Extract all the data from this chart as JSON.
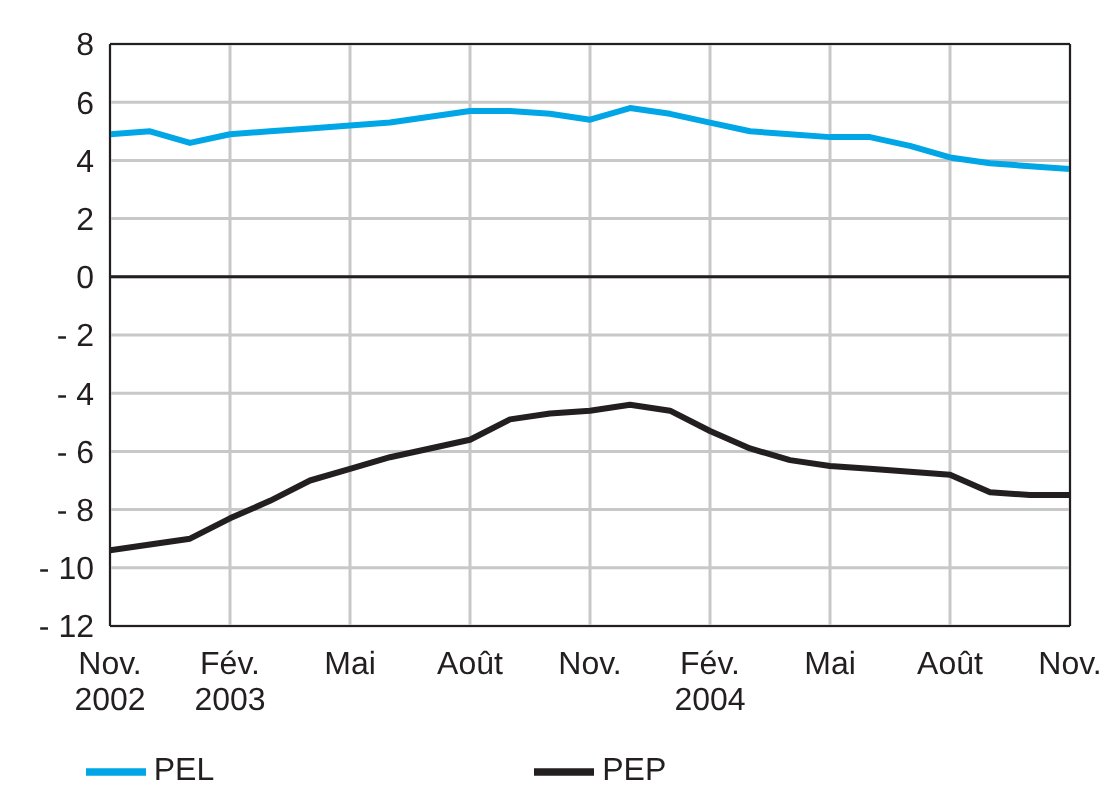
{
  "chart_data": {
    "type": "line",
    "x": [
      "2002-11",
      "2002-12",
      "2003-01",
      "2003-02",
      "2003-03",
      "2003-04",
      "2003-05",
      "2003-06",
      "2003-07",
      "2003-08",
      "2003-09",
      "2003-10",
      "2003-11",
      "2003-12",
      "2004-01",
      "2004-02",
      "2004-03",
      "2004-04",
      "2004-05",
      "2004-06",
      "2004-07",
      "2004-08",
      "2004-09",
      "2004-10",
      "2004-11"
    ],
    "series": [
      {
        "name": "PEP",
        "color": "#231f20",
        "values": [
          -9.4,
          -9.2,
          -9.0,
          -8.3,
          -7.7,
          -7.0,
          -6.6,
          -6.2,
          -5.9,
          -5.6,
          -4.9,
          -4.7,
          -4.6,
          -4.4,
          -4.6,
          -5.3,
          -5.9,
          -6.3,
          -6.5,
          -6.6,
          -6.7,
          -6.8,
          -7.4,
          -7.5,
          -7.5
        ]
      },
      {
        "name": "PEL",
        "color": "#00a6e6",
        "values": [
          4.9,
          5.0,
          4.6,
          4.9,
          5.0,
          5.1,
          5.2,
          5.3,
          5.5,
          5.7,
          5.7,
          5.6,
          5.4,
          5.8,
          5.6,
          5.3,
          5.0,
          4.9,
          4.8,
          4.8,
          4.5,
          4.1,
          3.9,
          3.8,
          3.7
        ]
      }
    ],
    "xlim": [
      "2002-11",
      "2004-11"
    ],
    "xticks": [
      {
        "value": "2002-11",
        "label": "Nov.\n2002"
      },
      {
        "value": "2003-02",
        "label": "Fév.\n2003"
      },
      {
        "value": "2003-05",
        "label": "Mai"
      },
      {
        "value": "2003-08",
        "label": "Août"
      },
      {
        "value": "2003-11",
        "label": "Nov."
      },
      {
        "value": "2004-02",
        "label": "Fév.\n2004"
      },
      {
        "value": "2004-05",
        "label": "Mai"
      },
      {
        "value": "2004-08",
        "label": "Août"
      },
      {
        "value": "2004-11",
        "label": "Nov."
      }
    ],
    "ylim": [
      -12,
      8
    ],
    "yticks": [
      8,
      6,
      4,
      2,
      0,
      {
        "value": -2,
        "label": "- 2"
      },
      {
        "value": -4,
        "label": "- 4"
      },
      {
        "value": -6,
        "label": "- 6"
      },
      {
        "value": -8,
        "label": "- 8"
      },
      {
        "value": -10,
        "label": "- 10"
      },
      {
        "value": -12,
        "label": "- 12"
      }
    ],
    "ref_lines": [
      {
        "axis": "y",
        "value": 0,
        "color": "#231f20"
      }
    ],
    "grid": true,
    "legend": "bottom",
    "marker": "none",
    "line_style": "solid"
  }
}
